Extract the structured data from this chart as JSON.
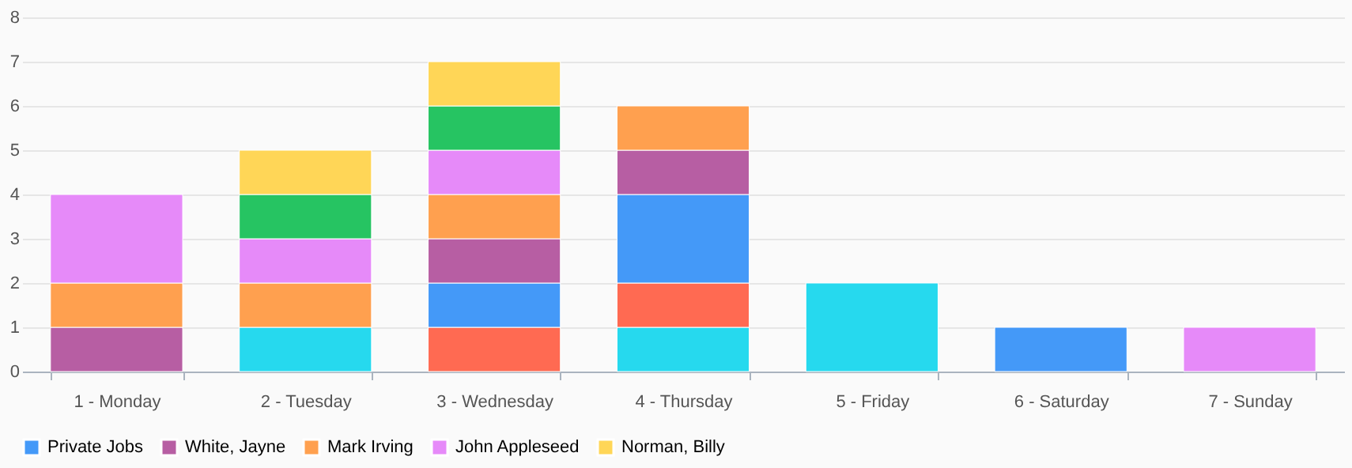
{
  "chart_data": {
    "type": "bar",
    "stacked": true,
    "categories": [
      "1 - Monday",
      "2 - Tuesday",
      "3 - Wednesday",
      "4 - Thursday",
      "5 - Friday",
      "6 - Saturday",
      "7 - Sunday"
    ],
    "series": [
      {
        "color": "#26d9ee",
        "values": [
          null,
          1,
          null,
          1,
          2,
          null,
          null
        ]
      },
      {
        "color": "#ff6a52",
        "values": [
          null,
          null,
          1,
          1,
          null,
          null,
          null
        ]
      },
      {
        "name": "Private Jobs",
        "color": "#4499f8",
        "values": [
          null,
          null,
          1,
          2,
          null,
          1,
          null
        ]
      },
      {
        "name": "White, Jayne",
        "color": "#b75ea3",
        "values": [
          1,
          null,
          1,
          1,
          null,
          null,
          null
        ]
      },
      {
        "name": "Mark Irving",
        "color": "#ffa04f",
        "values": [
          1,
          1,
          1,
          1,
          null,
          null,
          null
        ]
      },
      {
        "name": "John Appleseed",
        "color": "#e68af9",
        "values": [
          2,
          1,
          1,
          null,
          null,
          null,
          1
        ]
      },
      {
        "color": "#26c462",
        "values": [
          null,
          1,
          1,
          null,
          null,
          null,
          null
        ]
      },
      {
        "name": "Norman, Billy",
        "color": "#ffd657",
        "values": [
          null,
          1,
          1,
          null,
          null,
          null,
          null
        ]
      }
    ],
    "ylim": [
      0,
      8
    ],
    "yticks": [
      0,
      1,
      2,
      3,
      4,
      5,
      6,
      7,
      8
    ],
    "grid": "y",
    "legend": "bottom"
  }
}
